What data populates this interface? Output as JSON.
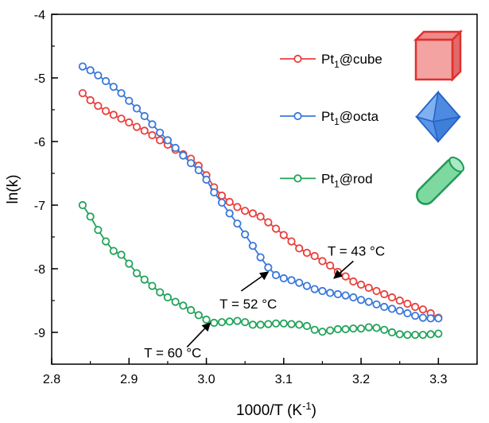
{
  "chart_data": {
    "type": "scatter",
    "xlabel": "1000/T (K",
    "xlabel_sup": "-1",
    "xlabel_end": ")",
    "ylabel": "ln(k)",
    "xlim": [
      2.8,
      3.35
    ],
    "ylim": [
      -9.5,
      -4
    ],
    "xticks": [
      2.8,
      2.9,
      3.0,
      3.1,
      3.2,
      3.3
    ],
    "xtick_labels": [
      "2.8",
      "2.9",
      "3.0",
      "3.1",
      "3.2",
      "3.3"
    ],
    "yticks": [
      -4,
      -5,
      -6,
      -7,
      -8,
      -9
    ],
    "ytick_labels": [
      "-4",
      "-5",
      "-6",
      "-7",
      "-8",
      "-9"
    ],
    "legend_position": "top-right",
    "grid": false,
    "series": [
      {
        "name": "Pt1@cube",
        "legend_main": "Pt",
        "legend_sub": "1",
        "legend_rest": "@cube",
        "color": "#e8403c",
        "shape_icon": "cube-icon",
        "x": [
          2.84,
          2.85,
          2.86,
          2.87,
          2.88,
          2.89,
          2.9,
          2.91,
          2.92,
          2.93,
          2.94,
          2.95,
          2.96,
          2.97,
          2.98,
          2.99,
          3.0,
          3.01,
          3.02,
          3.03,
          3.04,
          3.05,
          3.06,
          3.07,
          3.08,
          3.09,
          3.1,
          3.11,
          3.12,
          3.13,
          3.14,
          3.15,
          3.16,
          3.17,
          3.18,
          3.19,
          3.2,
          3.21,
          3.22,
          3.23,
          3.24,
          3.25,
          3.26,
          3.27,
          3.28,
          3.29,
          3.3
        ],
        "y": [
          -5.24,
          -5.35,
          -5.44,
          -5.52,
          -5.58,
          -5.64,
          -5.7,
          -5.77,
          -5.83,
          -5.9,
          -5.98,
          -6.05,
          -6.13,
          -6.2,
          -6.27,
          -6.38,
          -6.53,
          -6.72,
          -6.85,
          -6.95,
          -7.03,
          -7.09,
          -7.13,
          -7.18,
          -7.27,
          -7.37,
          -7.47,
          -7.57,
          -7.68,
          -7.75,
          -7.8,
          -7.88,
          -7.95,
          -8.05,
          -8.12,
          -8.2,
          -8.25,
          -8.3,
          -8.35,
          -8.4,
          -8.45,
          -8.5,
          -8.55,
          -8.6,
          -8.64,
          -8.7,
          -8.77
        ]
      },
      {
        "name": "Pt1@octa",
        "legend_main": "Pt",
        "legend_sub": "1",
        "legend_rest": "@octa",
        "color": "#3a78d8",
        "shape_icon": "octahedron-icon",
        "x": [
          2.84,
          2.85,
          2.86,
          2.87,
          2.88,
          2.89,
          2.9,
          2.91,
          2.92,
          2.93,
          2.94,
          2.95,
          2.96,
          2.97,
          2.98,
          2.99,
          3.0,
          3.01,
          3.02,
          3.03,
          3.04,
          3.05,
          3.06,
          3.07,
          3.08,
          3.09,
          3.1,
          3.11,
          3.12,
          3.13,
          3.14,
          3.15,
          3.16,
          3.17,
          3.18,
          3.19,
          3.2,
          3.21,
          3.22,
          3.23,
          3.24,
          3.25,
          3.26,
          3.27,
          3.28,
          3.29,
          3.3
        ],
        "y": [
          -4.82,
          -4.88,
          -4.96,
          -5.05,
          -5.14,
          -5.24,
          -5.36,
          -5.48,
          -5.6,
          -5.73,
          -5.86,
          -5.98,
          -6.1,
          -6.22,
          -6.34,
          -6.45,
          -6.6,
          -6.8,
          -6.96,
          -7.13,
          -7.29,
          -7.46,
          -7.64,
          -7.82,
          -7.98,
          -8.1,
          -8.15,
          -8.18,
          -8.22,
          -8.27,
          -8.32,
          -8.35,
          -8.38,
          -8.4,
          -8.42,
          -8.45,
          -8.49,
          -8.52,
          -8.56,
          -8.6,
          -8.63,
          -8.66,
          -8.7,
          -8.74,
          -8.77,
          -8.78,
          -8.78
        ]
      },
      {
        "name": "Pt1@rod",
        "legend_main": "Pt",
        "legend_sub": "1",
        "legend_rest": "@rod",
        "color": "#22a35a",
        "shape_icon": "rod-icon",
        "x": [
          2.84,
          2.85,
          2.86,
          2.87,
          2.88,
          2.89,
          2.9,
          2.91,
          2.92,
          2.93,
          2.94,
          2.95,
          2.96,
          2.97,
          2.98,
          2.99,
          3.0,
          3.01,
          3.02,
          3.03,
          3.04,
          3.05,
          3.06,
          3.07,
          3.08,
          3.09,
          3.1,
          3.11,
          3.12,
          3.13,
          3.14,
          3.15,
          3.16,
          3.17,
          3.18,
          3.19,
          3.2,
          3.21,
          3.22,
          3.23,
          3.24,
          3.25,
          3.26,
          3.27,
          3.28,
          3.29,
          3.3
        ],
        "y": [
          -7.0,
          -7.18,
          -7.39,
          -7.57,
          -7.72,
          -7.78,
          -7.92,
          -8.07,
          -8.17,
          -8.27,
          -8.37,
          -8.45,
          -8.52,
          -8.58,
          -8.65,
          -8.73,
          -8.8,
          -8.85,
          -8.84,
          -8.83,
          -8.82,
          -8.84,
          -8.88,
          -8.88,
          -8.87,
          -8.86,
          -8.86,
          -8.87,
          -8.88,
          -8.9,
          -8.96,
          -8.99,
          -8.97,
          -8.95,
          -8.95,
          -8.94,
          -8.94,
          -8.92,
          -8.93,
          -8.96,
          -9.0,
          -9.03,
          -9.04,
          -9.04,
          -9.04,
          -9.03,
          -9.02
        ]
      }
    ],
    "annotations": [
      {
        "text": "T = 43 °C",
        "tail": [
          3.19,
          -7.88
        ],
        "head": [
          3.165,
          -8.15
        ]
      },
      {
        "text": "T = 52 °C",
        "tail": [
          3.045,
          -8.35
        ],
        "head": [
          3.08,
          -8.05
        ]
      },
      {
        "text": "T = 60 °C",
        "tail": [
          2.975,
          -9.23
        ],
        "head": [
          3.005,
          -8.85
        ]
      }
    ]
  }
}
